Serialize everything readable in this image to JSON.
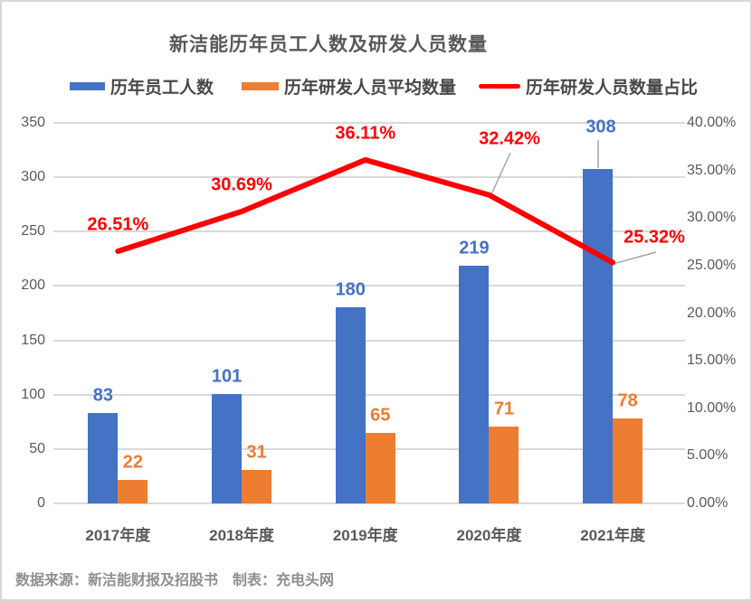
{
  "title": "新洁能历年员工人数及研发人员数量",
  "legend": [
    {
      "label": "历年员工人数",
      "color": "#4472C4",
      "type": "bar"
    },
    {
      "label": "历年研发人员平均数量",
      "color": "#ED7D31",
      "type": "bar"
    },
    {
      "label": "历年研发人员数量占比",
      "color": "#FF0000",
      "type": "line"
    }
  ],
  "footer": {
    "source": "数据来源：新洁能财报及招股书",
    "maker": "制表：充电头网"
  },
  "chart_data": {
    "type": "bar",
    "subtype": "grouped-bars-with-line-combo",
    "title": "新洁能历年员工人数及研发人员数量",
    "categories": [
      "2017年度",
      "2018年度",
      "2019年度",
      "2020年度",
      "2021年度"
    ],
    "series": [
      {
        "name": "历年员工人数",
        "type": "bar",
        "axis": "left",
        "color": "#4472C4",
        "values": [
          83,
          101,
          180,
          219,
          308
        ],
        "labels": [
          "83",
          "101",
          "180",
          "219",
          "308"
        ]
      },
      {
        "name": "历年研发人员平均数量",
        "type": "bar",
        "axis": "left",
        "color": "#ED7D31",
        "values": [
          22,
          31,
          65,
          71,
          78
        ],
        "labels": [
          "22",
          "31",
          "65",
          "71",
          "78"
        ]
      },
      {
        "name": "历年研发人员数量占比",
        "type": "line",
        "axis": "right",
        "color": "#FF0000",
        "values": [
          26.51,
          30.69,
          36.11,
          32.42,
          25.32
        ],
        "labels": [
          "26.51%",
          "30.69%",
          "36.11%",
          "32.42%",
          "25.32%"
        ]
      }
    ],
    "left_axis": {
      "min": 0,
      "max": 350,
      "tick_values": [
        350,
        300,
        250,
        200,
        150,
        100,
        50,
        0
      ],
      "tick_labels": [
        "350",
        "300",
        "250",
        "200",
        "150",
        "100",
        "50",
        "0"
      ]
    },
    "right_axis": {
      "min": 0,
      "max": 40,
      "tick_values": [
        40,
        35,
        30,
        25,
        20,
        15,
        10,
        5,
        0
      ],
      "tick_labels": [
        "40.00%",
        "35.00%",
        "30.00%",
        "25.00%",
        "20.00%",
        "15.00%",
        "10.00%",
        "5.00%",
        "0.00%"
      ]
    },
    "grid": true,
    "legend_position": "top",
    "gridline_color": "#d9d9d9",
    "leader_line_color": "#a6a6a6"
  }
}
